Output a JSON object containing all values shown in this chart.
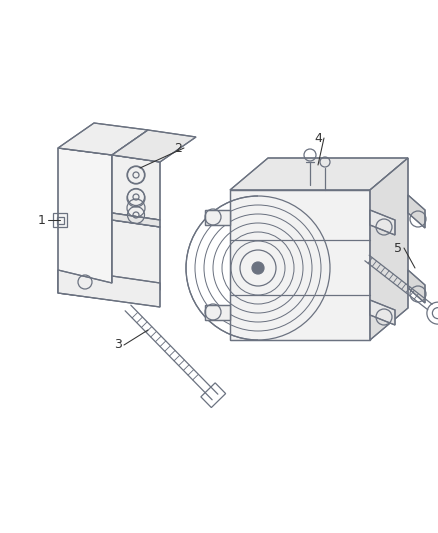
{
  "background_color": "#ffffff",
  "line_color": "#6b7280",
  "line_width": 0.9,
  "label_color": "#333333",
  "label_fontsize": 9,
  "figsize": [
    4.38,
    5.33
  ],
  "dpi": 100
}
